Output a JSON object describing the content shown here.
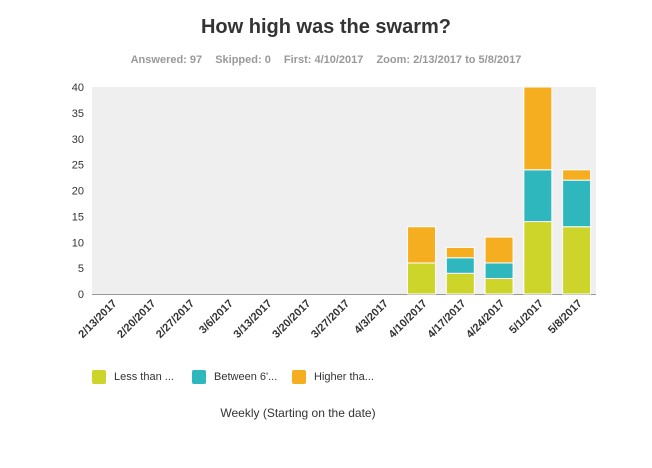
{
  "header": {
    "title": "How high was the swarm?",
    "answered": "Answered: 97",
    "skipped": "Skipped: 0",
    "first": "First: 4/10/2017",
    "zoom": "Zoom: 2/13/2017 to 5/8/2017"
  },
  "chart_data": {
    "type": "bar",
    "stacked": true,
    "categories": [
      "2/13/2017",
      "2/20/2017",
      "2/27/2017",
      "3/6/2017",
      "3/13/2017",
      "3/20/2017",
      "3/27/2017",
      "4/3/2017",
      "4/10/2017",
      "4/17/2017",
      "4/24/2017",
      "5/1/2017",
      "5/8/2017"
    ],
    "series": [
      {
        "name": "Less than ...",
        "color": "#cdd42a",
        "values": [
          0,
          0,
          0,
          0,
          0,
          0,
          0,
          0,
          6,
          4,
          3,
          14,
          13
        ]
      },
      {
        "name": "Between 6'...",
        "color": "#2eb8bd",
        "values": [
          0,
          0,
          0,
          0,
          0,
          0,
          0,
          0,
          0,
          3,
          3,
          10,
          9
        ]
      },
      {
        "name": "Higher tha...",
        "color": "#f6ae21",
        "values": [
          0,
          0,
          0,
          0,
          0,
          0,
          0,
          0,
          7,
          2,
          5,
          16,
          2
        ]
      }
    ],
    "ylim": [
      0,
      40
    ],
    "yticks": [
      0,
      5,
      10,
      15,
      20,
      25,
      30,
      35,
      40
    ],
    "xlabel": "Weekly (Starting on the date)",
    "ylabel": "",
    "legend_position": "bottom-left"
  }
}
